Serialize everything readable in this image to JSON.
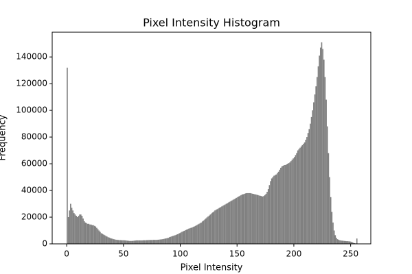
{
  "chart_data": {
    "type": "histogram",
    "title": "Pixel Intensity Histogram",
    "x_label": "Pixel Intensity",
    "y_label": "Frequency",
    "color": "#808080",
    "bins": [
      0,
      1,
      2,
      3,
      4,
      5,
      6,
      7,
      8,
      9,
      10,
      11,
      12,
      13,
      14,
      15,
      16,
      17,
      18,
      19,
      20,
      21,
      22,
      23,
      24,
      25,
      26,
      27,
      28,
      29,
      30,
      31,
      32,
      33,
      34,
      35,
      36,
      37,
      38,
      39,
      40,
      41,
      42,
      43,
      44,
      45,
      46,
      47,
      48,
      49,
      50,
      51,
      52,
      53,
      54,
      55,
      56,
      57,
      58,
      59,
      60,
      61,
      62,
      63,
      64,
      65,
      66,
      67,
      68,
      69,
      70,
      71,
      72,
      73,
      74,
      75,
      76,
      77,
      78,
      79,
      80,
      81,
      82,
      83,
      84,
      85,
      86,
      87,
      88,
      89,
      90,
      91,
      92,
      93,
      94,
      95,
      96,
      97,
      98,
      99,
      100,
      101,
      102,
      103,
      104,
      105,
      106,
      107,
      108,
      109,
      110,
      111,
      112,
      113,
      114,
      115,
      116,
      117,
      118,
      119,
      120,
      121,
      122,
      123,
      124,
      125,
      126,
      127,
      128,
      129,
      130,
      131,
      132,
      133,
      134,
      135,
      136,
      137,
      138,
      139,
      140,
      141,
      142,
      143,
      144,
      145,
      146,
      147,
      148,
      149,
      150,
      151,
      152,
      153,
      154,
      155,
      156,
      157,
      158,
      159,
      160,
      161,
      162,
      163,
      164,
      165,
      166,
      167,
      168,
      169,
      170,
      171,
      172,
      173,
      174,
      175,
      176,
      177,
      178,
      179,
      180,
      181,
      182,
      183,
      184,
      185,
      186,
      187,
      188,
      189,
      190,
      191,
      192,
      193,
      194,
      195,
      196,
      197,
      198,
      199,
      200,
      201,
      202,
      203,
      204,
      205,
      206,
      207,
      208,
      209,
      210,
      211,
      212,
      213,
      214,
      215,
      216,
      217,
      218,
      219,
      220,
      221,
      222,
      223,
      224,
      225,
      226,
      227,
      228,
      229,
      230,
      231,
      232,
      233,
      234,
      235,
      236,
      237,
      238,
      239,
      240,
      241,
      242,
      243,
      244,
      245,
      246,
      247,
      248,
      249,
      250,
      251,
      252,
      253,
      254,
      255,
      256
    ],
    "counts": [
      132000,
      20000,
      25000,
      30000,
      27000,
      25000,
      23000,
      22000,
      21000,
      20000,
      21000,
      22000,
      22000,
      21000,
      19000,
      17000,
      16000,
      15500,
      15000,
      15000,
      14500,
      14500,
      14000,
      14000,
      13500,
      13000,
      12000,
      11000,
      10000,
      9000,
      8000,
      7500,
      7000,
      6500,
      6000,
      5500,
      5000,
      4700,
      4300,
      4000,
      3800,
      3500,
      3300,
      3100,
      3000,
      2900,
      2800,
      2800,
      2700,
      2700,
      2700,
      2600,
      2500,
      2400,
      2300,
      2200,
      2200,
      2200,
      2300,
      2400,
      2500,
      2600,
      2600,
      2600,
      2600,
      2600,
      2600,
      2700,
      2700,
      2700,
      2800,
      2800,
      2900,
      2900,
      2900,
      2900,
      3000,
      3000,
      3000,
      3000,
      3100,
      3200,
      3300,
      3400,
      3500,
      3700,
      3900,
      4100,
      4300,
      4500,
      5000,
      5300,
      5600,
      5900,
      6200,
      6500,
      6800,
      7200,
      7600,
      8000,
      8500,
      9000,
      9400,
      9800,
      10200,
      10600,
      11000,
      11400,
      11700,
      12000,
      12300,
      12700,
      13100,
      13500,
      14000,
      14500,
      15000,
      15500,
      16000,
      16800,
      17500,
      18200,
      19000,
      19800,
      20500,
      21200,
      22000,
      22800,
      23500,
      24200,
      25000,
      25500,
      26000,
      26500,
      27000,
      27500,
      28000,
      28500,
      29000,
      29500,
      30000,
      30500,
      31000,
      31500,
      32000,
      32500,
      33000,
      33500,
      34000,
      34500,
      35000,
      35500,
      36000,
      36500,
      37000,
      37200,
      37500,
      37800,
      38000,
      38000,
      38000,
      38000,
      37800,
      37600,
      37400,
      37200,
      37000,
      36800,
      36500,
      36200,
      36000,
      35800,
      35500,
      35800,
      36500,
      37500,
      39000,
      41000,
      44000,
      47000,
      49000,
      50000,
      51000,
      51500,
      52000,
      53000,
      54000,
      55500,
      57000,
      58000,
      58500,
      59000,
      59000,
      59500,
      60000,
      60500,
      61000,
      62000,
      63000,
      64000,
      65000,
      66500,
      68000,
      70000,
      71000,
      72000,
      73000,
      74000,
      75000,
      76000,
      78000,
      80000,
      83000,
      86000,
      90000,
      95000,
      100000,
      106000,
      112000,
      118000,
      125000,
      133000,
      141000,
      147000,
      151000,
      146000,
      138000,
      125000,
      108000,
      88000,
      68000,
      50000,
      35000,
      24000,
      16000,
      10000,
      6500,
      4500,
      3500,
      3000,
      2700,
      2500,
      2400,
      2300,
      2200,
      2100,
      2000,
      2000,
      1900,
      1800,
      1600,
      1200,
      800,
      500,
      300,
      4000
    ],
    "xlim": [
      -12.75,
      267.75
    ],
    "xticks": [
      0,
      50,
      100,
      150,
      200,
      250
    ],
    "ylim": [
      0,
      158550
    ],
    "yticks": [
      0,
      20000,
      40000,
      60000,
      80000,
      100000,
      120000,
      140000
    ]
  }
}
